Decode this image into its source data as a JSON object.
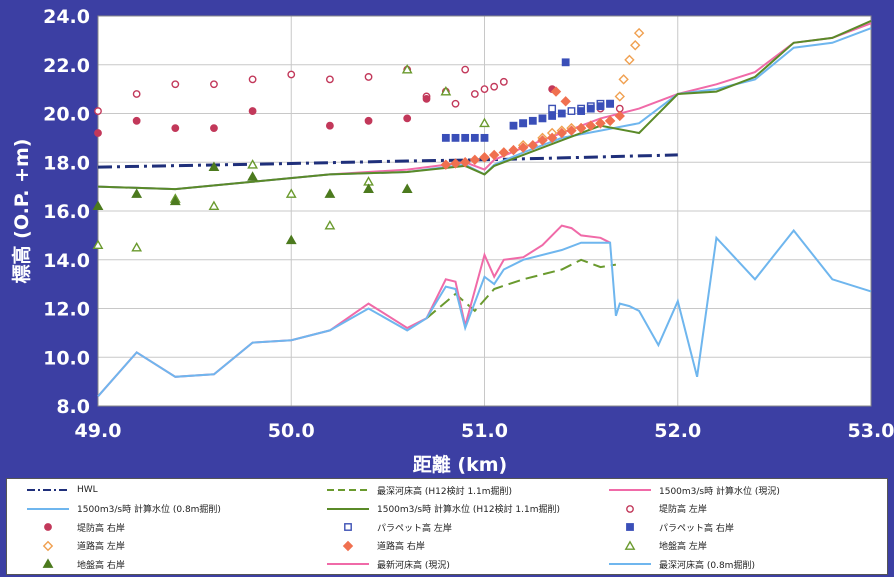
{
  "chart_data": {
    "type": "line",
    "xlabel": "距離 (km)",
    "ylabel": "標高 (O.P. +m)",
    "xlim": [
      49.0,
      53.0
    ],
    "ylim": [
      8.0,
      24.0
    ],
    "xticks": [
      "49.0",
      "50.0",
      "51.0",
      "52.0",
      "53.0"
    ],
    "yticks": [
      "8.0",
      "10.0",
      "12.0",
      "14.0",
      "16.0",
      "18.0",
      "20.0",
      "22.0",
      "24.0"
    ],
    "grid": true,
    "legend_position": "bottom",
    "series": [
      {
        "name": "HWL",
        "style": "dashdot",
        "color": "#1f2f7a",
        "x": [
          49.0,
          50.0,
          50.6,
          51.0,
          51.5,
          52.0
        ],
        "y": [
          17.8,
          17.95,
          18.05,
          18.1,
          18.2,
          18.3
        ]
      },
      {
        "name": "最深河床高 (H12検討 1.1m掘削)",
        "style": "dashed",
        "color": "#6a9a2e",
        "x": [
          50.7,
          50.85,
          50.95,
          51.05,
          51.2,
          51.4,
          51.5,
          51.6,
          51.68
        ],
        "y": [
          11.6,
          12.6,
          11.9,
          12.8,
          13.2,
          13.6,
          14.0,
          13.7,
          13.8
        ]
      },
      {
        "name": "1500m3/s時 計算水位 (現況)",
        "style": "solid",
        "color": "#f06aa8",
        "x": [
          49.0,
          49.4,
          49.8,
          50.2,
          50.6,
          50.9,
          51.0,
          51.05,
          51.2,
          51.4,
          51.6,
          51.8,
          52.0,
          52.2,
          52.4,
          52.6,
          52.8,
          53.0
        ],
        "y": [
          17.0,
          16.9,
          17.2,
          17.5,
          17.7,
          18.0,
          17.7,
          18.1,
          18.6,
          19.2,
          19.8,
          20.2,
          20.8,
          21.2,
          21.7,
          22.9,
          23.1,
          23.7
        ]
      },
      {
        "name": "1500m3/s時 計算水位 (0.8m掘削)",
        "style": "solid",
        "color": "#6fb6ee",
        "x": [
          49.0,
          49.4,
          49.8,
          50.2,
          50.6,
          50.9,
          51.0,
          51.05,
          51.2,
          51.4,
          51.6,
          51.8,
          52.0,
          52.2,
          52.4,
          52.6,
          52.8,
          53.0
        ],
        "y": [
          17.0,
          16.9,
          17.2,
          17.5,
          17.6,
          17.9,
          17.5,
          17.9,
          18.4,
          19.0,
          19.3,
          19.6,
          20.8,
          21.0,
          21.4,
          22.7,
          22.9,
          23.5
        ]
      },
      {
        "name": "1500m3/s時 計算水位 (H12検討 1.1m掘削)",
        "style": "solid",
        "color": "#5a8a28",
        "x": [
          49.0,
          49.4,
          49.8,
          50.2,
          50.6,
          50.9,
          51.0,
          51.05,
          51.2,
          51.4,
          51.6,
          51.8,
          52.0,
          52.2,
          52.4,
          52.6,
          52.8,
          53.0
        ],
        "y": [
          17.0,
          16.9,
          17.2,
          17.5,
          17.6,
          17.85,
          17.5,
          17.85,
          18.3,
          18.9,
          19.5,
          19.2,
          20.8,
          20.9,
          21.5,
          22.9,
          23.1,
          23.8
        ]
      },
      {
        "name": "最新河床高 (現況)",
        "style": "solid",
        "color": "#f06aa8",
        "x": [
          49.0,
          49.2,
          49.4,
          49.6,
          49.8,
          50.0,
          50.2,
          50.4,
          50.6,
          50.7,
          50.8,
          50.85,
          50.9,
          51.0,
          51.05,
          51.1,
          51.2,
          51.3,
          51.4,
          51.45,
          51.5,
          51.6,
          51.65
        ],
        "y": [
          8.4,
          10.2,
          9.2,
          9.3,
          10.6,
          10.7,
          11.1,
          12.2,
          11.2,
          11.6,
          13.2,
          13.1,
          11.3,
          14.2,
          13.3,
          14.0,
          14.1,
          14.6,
          15.4,
          15.3,
          15.0,
          14.9,
          14.7
        ]
      },
      {
        "name": "最深河床高 (0.8m掘削)",
        "style": "solid",
        "color": "#6fb6ee",
        "x": [
          49.0,
          49.2,
          49.4,
          49.6,
          49.8,
          50.0,
          50.2,
          50.4,
          50.6,
          50.7,
          50.8,
          50.85,
          50.9,
          51.0,
          51.05,
          51.1,
          51.2,
          51.4,
          51.5,
          51.6,
          51.65,
          51.68,
          51.7,
          51.75,
          51.8,
          51.9,
          52.0,
          52.1,
          52.2,
          52.4,
          52.6,
          52.8,
          53.0
        ],
        "y": [
          8.4,
          10.2,
          9.2,
          9.3,
          10.6,
          10.7,
          11.1,
          12.0,
          11.1,
          11.6,
          12.9,
          12.8,
          11.2,
          13.3,
          13.0,
          13.6,
          14.0,
          14.4,
          14.7,
          14.7,
          14.7,
          11.7,
          12.2,
          12.1,
          11.9,
          10.5,
          12.3,
          9.2,
          14.9,
          13.2,
          15.2,
          13.2,
          12.7
        ]
      }
    ],
    "markers": [
      {
        "name": "堤防高 左岸",
        "symbol": "circle-open",
        "color": "#c2385a",
        "x": [
          49.0,
          49.2,
          49.4,
          49.6,
          49.8,
          50.0,
          50.2,
          50.4,
          50.6,
          50.7,
          50.8,
          50.85,
          50.9,
          50.95,
          51.0,
          51.05,
          51.1,
          51.6,
          51.7
        ],
        "y": [
          20.1,
          20.8,
          21.2,
          21.2,
          21.4,
          21.6,
          21.4,
          21.5,
          21.8,
          20.7,
          20.9,
          20.4,
          21.8,
          20.8,
          21.0,
          21.1,
          21.3,
          20.2,
          20.2
        ]
      },
      {
        "name": "堤防高 右岸",
        "symbol": "circle",
        "color": "#c2385a",
        "x": [
          49.0,
          49.2,
          49.4,
          49.6,
          49.8,
          50.2,
          50.4,
          50.6,
          50.7,
          51.35
        ],
        "y": [
          19.2,
          19.7,
          19.4,
          19.4,
          20.1,
          19.5,
          19.7,
          19.8,
          20.6,
          21.0
        ]
      },
      {
        "name": "道路高 左岸",
        "symbol": "diamond-open",
        "color": "#f0a050",
        "x": [
          51.0,
          51.1,
          51.2,
          51.3,
          51.35,
          51.4,
          51.45,
          51.5,
          51.55,
          51.6,
          51.65,
          51.7,
          51.72,
          51.75,
          51.78,
          51.8
        ],
        "y": [
          18.2,
          18.4,
          18.7,
          19.0,
          19.2,
          19.3,
          19.4,
          19.4,
          19.5,
          19.6,
          19.7,
          20.7,
          21.4,
          22.2,
          22.8,
          23.3
        ]
      },
      {
        "name": "道路高 右岸",
        "symbol": "diamond",
        "color": "#f07050",
        "x": [
          50.8,
          50.85,
          50.9,
          50.95,
          51.0,
          51.05,
          51.1,
          51.15,
          51.2,
          51.25,
          51.3,
          51.35,
          51.4,
          51.45,
          51.5,
          51.55,
          51.6,
          51.65,
          51.7,
          51.37,
          51.42
        ],
        "y": [
          17.9,
          17.95,
          18.0,
          18.1,
          18.2,
          18.3,
          18.4,
          18.5,
          18.6,
          18.7,
          18.9,
          19.0,
          19.2,
          19.3,
          19.4,
          19.5,
          19.6,
          19.7,
          19.9,
          20.9,
          20.5
        ]
      },
      {
        "name": "地盤高 左岸",
        "symbol": "triangle-open",
        "color": "#6a9a2e",
        "x": [
          49.0,
          49.2,
          49.4,
          49.6,
          49.8,
          50.0,
          50.2,
          50.4,
          50.6,
          50.8,
          51.0
        ],
        "y": [
          14.6,
          14.5,
          16.5,
          16.2,
          17.9,
          16.7,
          15.4,
          17.2,
          21.8,
          20.9,
          19.6
        ]
      },
      {
        "name": "地盤高 右岸",
        "symbol": "triangle",
        "color": "#4c7a1e",
        "x": [
          49.0,
          49.2,
          49.4,
          49.6,
          49.8,
          50.0,
          50.2,
          50.4,
          50.6
        ],
        "y": [
          16.2,
          16.7,
          16.4,
          17.8,
          17.4,
          14.8,
          16.7,
          16.9,
          16.9
        ]
      },
      {
        "name": "パラペット高 左岸",
        "symbol": "square-open",
        "color": "#3c50b4",
        "x": [
          51.2,
          51.35,
          51.45,
          51.5,
          51.55,
          51.6,
          51.65
        ],
        "y": [
          19.6,
          20.2,
          20.1,
          20.2,
          20.3,
          20.4,
          20.4
        ]
      },
      {
        "name": "パラペット高 右岸",
        "symbol": "square",
        "color": "#3a4fb8",
        "x": [
          50.8,
          50.85,
          50.9,
          50.95,
          51.0,
          51.15,
          51.2,
          51.25,
          51.3,
          51.35,
          51.4,
          51.42,
          51.5,
          51.55,
          51.6,
          51.65
        ],
        "y": [
          19.0,
          19.0,
          19.0,
          19.0,
          19.0,
          19.5,
          19.6,
          19.7,
          19.8,
          19.9,
          20.0,
          22.1,
          20.1,
          20.2,
          20.3,
          20.4
        ]
      }
    ]
  },
  "legend": [
    {
      "label": "HWL",
      "symbol": "dashdot",
      "color": "#1f2f7a"
    },
    {
      "label": "最深河床高 (H12検討 1.1m掘削)",
      "symbol": "dashed",
      "color": "#6a9a2e"
    },
    {
      "label": "1500m3/s時 計算水位 (現況)",
      "symbol": "line",
      "color": "#f06aa8"
    },
    {
      "label": "1500m3/s時 計算水位 (0.8m掘削)",
      "symbol": "line",
      "color": "#6fb6ee"
    },
    {
      "label": "1500m3/s時 計算水位 (H12検討 1.1m掘削)",
      "symbol": "line",
      "color": "#5a8a28"
    },
    {
      "label": "堤防高 左岸",
      "symbol": "circle-open",
      "color": "#c2385a"
    },
    {
      "label": "堤防高 右岸",
      "symbol": "circle",
      "color": "#c2385a"
    },
    {
      "label": "パラペット高 左岸",
      "symbol": "square-open",
      "color": "#3c50b4"
    },
    {
      "label": "パラペット高 右岸",
      "symbol": "square",
      "color": "#3a4fb8"
    },
    {
      "label": "道路高 左岸",
      "symbol": "diamond-open",
      "color": "#f0a050"
    },
    {
      "label": "道路高 右岸",
      "symbol": "diamond",
      "color": "#f07050"
    },
    {
      "label": "地盤高 左岸",
      "symbol": "triangle-open",
      "color": "#6a9a2e"
    },
    {
      "label": "地盤高 右岸",
      "symbol": "triangle",
      "color": "#4c7a1e"
    },
    {
      "label": "最新河床高 (現況)",
      "symbol": "line",
      "color": "#f06aa8"
    },
    {
      "label": "最深河床高 (0.8m掘削)",
      "symbol": "line",
      "color": "#6fb6ee"
    }
  ]
}
